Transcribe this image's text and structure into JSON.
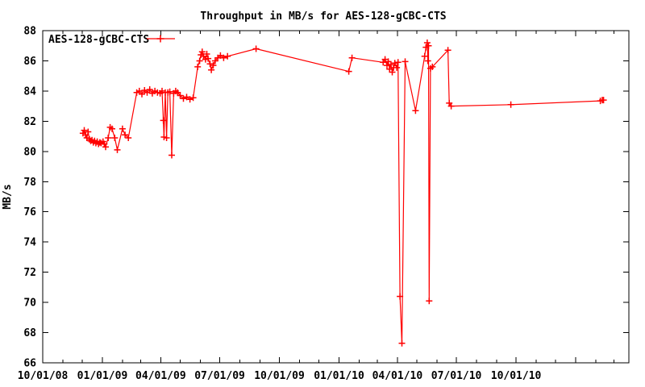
{
  "page": {
    "background": "#ffffff"
  },
  "chart_data": {
    "type": "line",
    "title": "Throughput in MB/s for AES-128-gCBC-CTS",
    "xlabel": "",
    "ylabel": "MB/s",
    "colors": {
      "series": "#ff0000",
      "axis": "#000000",
      "background": "#ffffff"
    },
    "legend": {
      "position": "top-left-inside",
      "entries": [
        "AES-128-gCBC-CTS"
      ]
    },
    "grid": "off",
    "x_axis": {
      "start": "2008-10-01",
      "end": "2011-03-24",
      "minor_tick_interval": "1 month",
      "major_ticks": [
        {
          "date": "2008-10-01",
          "label": "10/01/08"
        },
        {
          "date": "2009-01-01",
          "label": "01/01/09"
        },
        {
          "date": "2009-04-01",
          "label": "04/01/09"
        },
        {
          "date": "2009-07-01",
          "label": "07/01/09"
        },
        {
          "date": "2009-10-01",
          "label": "10/01/09"
        },
        {
          "date": "2010-01-01",
          "label": "01/01/10"
        },
        {
          "date": "2010-04-01",
          "label": "04/01/10"
        },
        {
          "date": "2010-07-01",
          "label": "07/01/10"
        },
        {
          "date": "2010-10-01",
          "label": "10/01/10"
        },
        {
          "date": "2011-01-01",
          "label": ""
        }
      ]
    },
    "y_axis": {
      "min": 66,
      "max": 88,
      "step": 2,
      "tick_labels": [
        "66",
        "68",
        "70",
        "72",
        "74",
        "76",
        "78",
        "80",
        "82",
        "84",
        "86",
        "88"
      ]
    },
    "series": [
      {
        "name": "AES-128-gCBC-CTS",
        "color": "#ff0000",
        "marker": "plus",
        "points": [
          [
            "2008-12-02",
            81.2
          ],
          [
            "2008-12-04",
            81.4
          ],
          [
            "2008-12-06",
            81.1
          ],
          [
            "2008-12-08",
            80.9
          ],
          [
            "2008-12-10",
            81.3
          ],
          [
            "2008-12-12",
            80.8
          ],
          [
            "2008-12-14",
            80.7
          ],
          [
            "2008-12-16",
            80.75
          ],
          [
            "2008-12-18",
            80.6
          ],
          [
            "2008-12-20",
            80.7
          ],
          [
            "2008-12-22",
            80.55
          ],
          [
            "2008-12-24",
            80.65
          ],
          [
            "2008-12-26",
            80.5
          ],
          [
            "2008-12-28",
            80.6
          ],
          [
            "2008-12-30",
            80.55
          ],
          [
            "2009-01-02",
            80.65
          ],
          [
            "2009-01-04",
            80.5
          ],
          [
            "2009-01-06",
            80.3
          ],
          [
            "2009-01-10",
            80.9
          ],
          [
            "2009-01-13",
            81.6
          ],
          [
            "2009-01-16",
            81.5
          ],
          [
            "2009-01-20",
            80.9
          ],
          [
            "2009-01-24",
            80.1
          ],
          [
            "2009-02-01",
            81.5
          ],
          [
            "2009-02-05",
            81.1
          ],
          [
            "2009-02-10",
            80.9
          ],
          [
            "2009-02-23",
            83.9
          ],
          [
            "2009-02-27",
            84.0
          ],
          [
            "2009-03-03",
            83.8
          ],
          [
            "2009-03-07",
            84.05
          ],
          [
            "2009-03-11",
            83.9
          ],
          [
            "2009-03-15",
            84.1
          ],
          [
            "2009-03-19",
            83.85
          ],
          [
            "2009-03-23",
            84.0
          ],
          [
            "2009-03-27",
            83.9
          ],
          [
            "2009-03-31",
            83.85
          ],
          [
            "2009-04-03",
            84.0
          ],
          [
            "2009-04-05",
            82.05
          ],
          [
            "2009-04-06",
            80.95
          ],
          [
            "2009-04-08",
            83.9
          ],
          [
            "2009-04-10",
            80.9
          ],
          [
            "2009-04-12",
            83.9
          ],
          [
            "2009-04-15",
            83.95
          ],
          [
            "2009-04-18",
            79.75
          ],
          [
            "2009-04-21",
            83.85
          ],
          [
            "2009-04-24",
            84.0
          ],
          [
            "2009-04-27",
            83.9
          ],
          [
            "2009-05-01",
            83.7
          ],
          [
            "2009-05-06",
            83.5
          ],
          [
            "2009-05-11",
            83.6
          ],
          [
            "2009-05-16",
            83.45
          ],
          [
            "2009-05-21",
            83.55
          ],
          [
            "2009-05-28",
            85.6
          ],
          [
            "2009-05-31",
            86.0
          ],
          [
            "2009-06-02",
            86.4
          ],
          [
            "2009-06-04",
            86.6
          ],
          [
            "2009-06-06",
            86.3
          ],
          [
            "2009-06-09",
            86.1
          ],
          [
            "2009-06-11",
            86.45
          ],
          [
            "2009-06-13",
            86.15
          ],
          [
            "2009-06-16",
            85.8
          ],
          [
            "2009-06-18",
            85.4
          ],
          [
            "2009-06-21",
            85.7
          ],
          [
            "2009-06-24",
            86.0
          ],
          [
            "2009-06-28",
            86.2
          ],
          [
            "2009-07-02",
            86.35
          ],
          [
            "2009-07-07",
            86.2
          ],
          [
            "2009-07-13",
            86.3
          ],
          [
            "2009-08-26",
            86.8
          ],
          [
            "2010-01-16",
            85.3
          ],
          [
            "2010-01-21",
            86.2
          ],
          [
            "2010-03-10",
            85.9
          ],
          [
            "2010-03-13",
            86.1
          ],
          [
            "2010-03-16",
            85.7
          ],
          [
            "2010-03-18",
            85.95
          ],
          [
            "2010-03-20",
            85.45
          ],
          [
            "2010-03-22",
            85.75
          ],
          [
            "2010-03-24",
            85.25
          ],
          [
            "2010-03-26",
            85.55
          ],
          [
            "2010-03-28",
            85.85
          ],
          [
            "2010-03-31",
            85.55
          ],
          [
            "2010-04-02",
            85.9
          ],
          [
            "2010-04-05",
            70.4
          ],
          [
            "2010-04-08",
            67.3
          ],
          [
            "2010-04-13",
            85.95
          ],
          [
            "2010-04-29",
            82.7
          ],
          [
            "2010-05-13",
            86.3
          ],
          [
            "2010-05-15",
            86.9
          ],
          [
            "2010-05-17",
            87.2
          ],
          [
            "2010-05-18",
            86.0
          ],
          [
            "2010-05-19",
            87.0
          ],
          [
            "2010-05-20",
            70.1
          ],
          [
            "2010-05-22",
            85.5
          ],
          [
            "2010-05-25",
            85.6
          ],
          [
            "2010-06-18",
            86.7
          ],
          [
            "2010-06-20",
            83.2
          ],
          [
            "2010-06-23",
            83.0
          ],
          [
            "2010-09-23",
            83.1
          ],
          [
            "2011-02-08",
            83.35
          ],
          [
            "2011-02-11",
            83.4
          ],
          [
            "2011-02-13",
            83.4
          ]
        ]
      }
    ]
  }
}
